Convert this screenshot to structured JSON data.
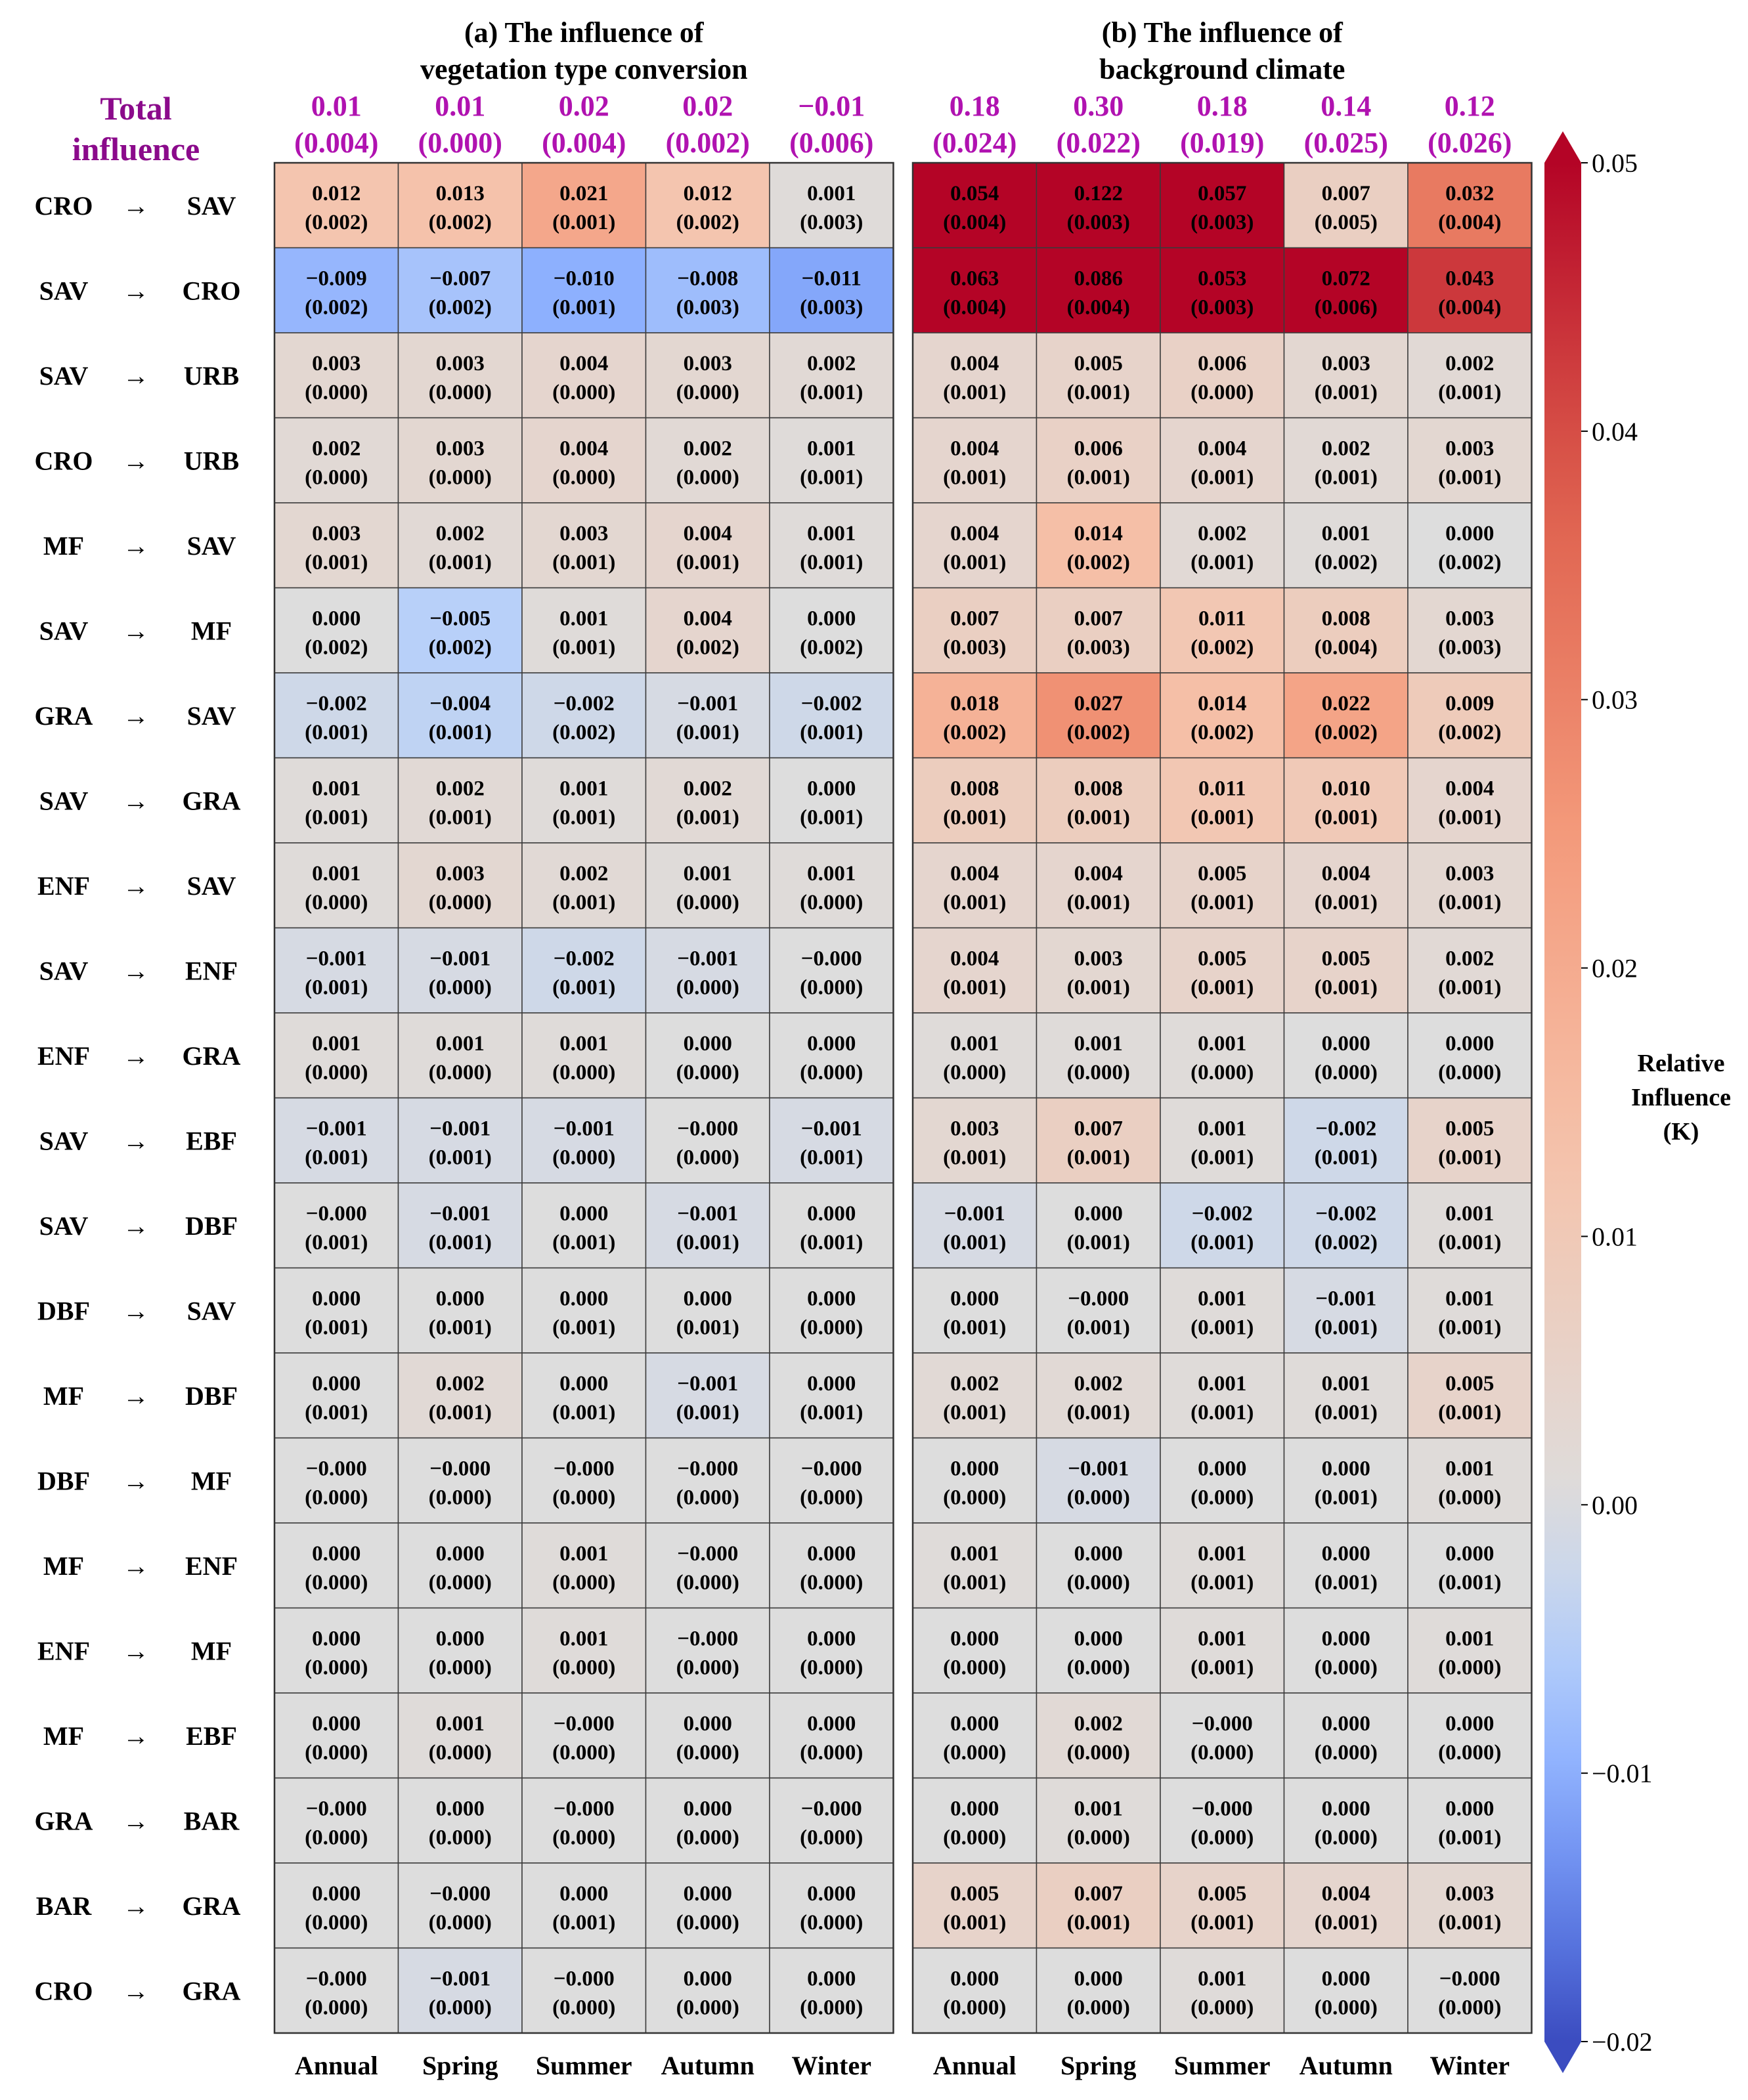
{
  "chart_data": {
    "type": "heatmap",
    "panels": [
      {
        "title_lines": [
          "(a) The influence of",
          "vegetation type conversion"
        ],
        "totals": [
          "0.01",
          "0.01",
          "0.02",
          "0.02",
          "−0.01"
        ],
        "totals_se": [
          "(0.004)",
          "(0.000)",
          "(0.004)",
          "(0.002)",
          "(0.006)"
        ],
        "values": [
          [
            "0.012",
            "0.013",
            "0.021",
            "0.012",
            "0.001"
          ],
          [
            "−0.009",
            "−0.007",
            "−0.010",
            "−0.008",
            "−0.011"
          ],
          [
            "0.003",
            "0.003",
            "0.004",
            "0.003",
            "0.002"
          ],
          [
            "0.002",
            "0.003",
            "0.004",
            "0.002",
            "0.001"
          ],
          [
            "0.003",
            "0.002",
            "0.003",
            "0.004",
            "0.001"
          ],
          [
            "0.000",
            "−0.005",
            "0.001",
            "0.004",
            "0.000"
          ],
          [
            "−0.002",
            "−0.004",
            "−0.002",
            "−0.001",
            "−0.002"
          ],
          [
            "0.001",
            "0.002",
            "0.001",
            "0.002",
            "0.000"
          ],
          [
            "0.001",
            "0.003",
            "0.002",
            "0.001",
            "0.001"
          ],
          [
            "−0.001",
            "−0.001",
            "−0.002",
            "−0.001",
            "−0.000"
          ],
          [
            "0.001",
            "0.001",
            "0.001",
            "0.000",
            "0.000"
          ],
          [
            "−0.001",
            "−0.001",
            "−0.001",
            "−0.000",
            "−0.001"
          ],
          [
            "−0.000",
            "−0.001",
            "0.000",
            "−0.001",
            "0.000"
          ],
          [
            "0.000",
            "0.000",
            "0.000",
            "0.000",
            "0.000"
          ],
          [
            "0.000",
            "0.002",
            "0.000",
            "−0.001",
            "0.000"
          ],
          [
            "−0.000",
            "−0.000",
            "−0.000",
            "−0.000",
            "−0.000"
          ],
          [
            "0.000",
            "0.000",
            "0.001",
            "−0.000",
            "0.000"
          ],
          [
            "0.000",
            "0.000",
            "0.001",
            "−0.000",
            "0.000"
          ],
          [
            "0.000",
            "0.001",
            "−0.000",
            "0.000",
            "0.000"
          ],
          [
            "−0.000",
            "0.000",
            "−0.000",
            "0.000",
            "−0.000"
          ],
          [
            "0.000",
            "−0.000",
            "0.000",
            "0.000",
            "0.000"
          ],
          [
            "−0.000",
            "−0.001",
            "−0.000",
            "0.000",
            "0.000"
          ]
        ],
        "errors": [
          [
            "(0.002)",
            "(0.002)",
            "(0.001)",
            "(0.002)",
            "(0.003)"
          ],
          [
            "(0.002)",
            "(0.002)",
            "(0.001)",
            "(0.003)",
            "(0.003)"
          ],
          [
            "(0.000)",
            "(0.000)",
            "(0.000)",
            "(0.000)",
            "(0.001)"
          ],
          [
            "(0.000)",
            "(0.000)",
            "(0.000)",
            "(0.000)",
            "(0.001)"
          ],
          [
            "(0.001)",
            "(0.001)",
            "(0.001)",
            "(0.001)",
            "(0.001)"
          ],
          [
            "(0.002)",
            "(0.002)",
            "(0.001)",
            "(0.002)",
            "(0.002)"
          ],
          [
            "(0.001)",
            "(0.001)",
            "(0.002)",
            "(0.001)",
            "(0.001)"
          ],
          [
            "(0.001)",
            "(0.001)",
            "(0.001)",
            "(0.001)",
            "(0.001)"
          ],
          [
            "(0.000)",
            "(0.000)",
            "(0.001)",
            "(0.000)",
            "(0.000)"
          ],
          [
            "(0.001)",
            "(0.000)",
            "(0.001)",
            "(0.000)",
            "(0.000)"
          ],
          [
            "(0.000)",
            "(0.000)",
            "(0.000)",
            "(0.000)",
            "(0.000)"
          ],
          [
            "(0.001)",
            "(0.001)",
            "(0.000)",
            "(0.000)",
            "(0.001)"
          ],
          [
            "(0.001)",
            "(0.001)",
            "(0.001)",
            "(0.001)",
            "(0.001)"
          ],
          [
            "(0.001)",
            "(0.001)",
            "(0.001)",
            "(0.001)",
            "(0.000)"
          ],
          [
            "(0.001)",
            "(0.001)",
            "(0.001)",
            "(0.001)",
            "(0.001)"
          ],
          [
            "(0.000)",
            "(0.000)",
            "(0.000)",
            "(0.000)",
            "(0.000)"
          ],
          [
            "(0.000)",
            "(0.000)",
            "(0.000)",
            "(0.000)",
            "(0.000)"
          ],
          [
            "(0.000)",
            "(0.000)",
            "(0.000)",
            "(0.000)",
            "(0.000)"
          ],
          [
            "(0.000)",
            "(0.000)",
            "(0.000)",
            "(0.000)",
            "(0.000)"
          ],
          [
            "(0.000)",
            "(0.000)",
            "(0.000)",
            "(0.000)",
            "(0.000)"
          ],
          [
            "(0.000)",
            "(0.000)",
            "(0.001)",
            "(0.000)",
            "(0.000)"
          ],
          [
            "(0.000)",
            "(0.000)",
            "(0.000)",
            "(0.000)",
            "(0.000)"
          ]
        ]
      },
      {
        "title_lines": [
          "(b) The influence of",
          "background climate"
        ],
        "totals": [
          "0.18",
          "0.30",
          "0.18",
          "0.14",
          "0.12"
        ],
        "totals_se": [
          "(0.024)",
          "(0.022)",
          "(0.019)",
          "(0.025)",
          "(0.026)"
        ],
        "values": [
          [
            "0.054",
            "0.122",
            "0.057",
            "0.007",
            "0.032"
          ],
          [
            "0.063",
            "0.086",
            "0.053",
            "0.072",
            "0.043"
          ],
          [
            "0.004",
            "0.005",
            "0.006",
            "0.003",
            "0.002"
          ],
          [
            "0.004",
            "0.006",
            "0.004",
            "0.002",
            "0.003"
          ],
          [
            "0.004",
            "0.014",
            "0.002",
            "0.001",
            "0.000"
          ],
          [
            "0.007",
            "0.007",
            "0.011",
            "0.008",
            "0.003"
          ],
          [
            "0.018",
            "0.027",
            "0.014",
            "0.022",
            "0.009"
          ],
          [
            "0.008",
            "0.008",
            "0.011",
            "0.010",
            "0.004"
          ],
          [
            "0.004",
            "0.004",
            "0.005",
            "0.004",
            "0.003"
          ],
          [
            "0.004",
            "0.003",
            "0.005",
            "0.005",
            "0.002"
          ],
          [
            "0.001",
            "0.001",
            "0.001",
            "0.000",
            "0.000"
          ],
          [
            "0.003",
            "0.007",
            "0.001",
            "−0.002",
            "0.005"
          ],
          [
            "−0.001",
            "0.000",
            "−0.002",
            "−0.002",
            "0.001"
          ],
          [
            "0.000",
            "−0.000",
            "0.001",
            "−0.001",
            "0.001"
          ],
          [
            "0.002",
            "0.002",
            "0.001",
            "0.001",
            "0.005"
          ],
          [
            "0.000",
            "−0.001",
            "0.000",
            "0.000",
            "0.001"
          ],
          [
            "0.001",
            "0.000",
            "0.001",
            "0.000",
            "0.000"
          ],
          [
            "0.000",
            "0.000",
            "0.001",
            "0.000",
            "0.001"
          ],
          [
            "0.000",
            "0.002",
            "−0.000",
            "0.000",
            "0.000"
          ],
          [
            "0.000",
            "0.001",
            "−0.000",
            "0.000",
            "0.000"
          ],
          [
            "0.005",
            "0.007",
            "0.005",
            "0.004",
            "0.003"
          ],
          [
            "0.000",
            "0.000",
            "0.001",
            "0.000",
            "−0.000"
          ]
        ],
        "errors": [
          [
            "(0.004)",
            "(0.003)",
            "(0.003)",
            "(0.005)",
            "(0.004)"
          ],
          [
            "(0.004)",
            "(0.004)",
            "(0.003)",
            "(0.006)",
            "(0.004)"
          ],
          [
            "(0.001)",
            "(0.001)",
            "(0.000)",
            "(0.001)",
            "(0.001)"
          ],
          [
            "(0.001)",
            "(0.001)",
            "(0.001)",
            "(0.001)",
            "(0.001)"
          ],
          [
            "(0.001)",
            "(0.002)",
            "(0.001)",
            "(0.002)",
            "(0.002)"
          ],
          [
            "(0.003)",
            "(0.003)",
            "(0.002)",
            "(0.004)",
            "(0.003)"
          ],
          [
            "(0.002)",
            "(0.002)",
            "(0.002)",
            "(0.002)",
            "(0.002)"
          ],
          [
            "(0.001)",
            "(0.001)",
            "(0.001)",
            "(0.001)",
            "(0.001)"
          ],
          [
            "(0.001)",
            "(0.001)",
            "(0.001)",
            "(0.001)",
            "(0.001)"
          ],
          [
            "(0.001)",
            "(0.001)",
            "(0.001)",
            "(0.001)",
            "(0.001)"
          ],
          [
            "(0.000)",
            "(0.000)",
            "(0.000)",
            "(0.000)",
            "(0.000)"
          ],
          [
            "(0.001)",
            "(0.001)",
            "(0.001)",
            "(0.001)",
            "(0.001)"
          ],
          [
            "(0.001)",
            "(0.001)",
            "(0.001)",
            "(0.002)",
            "(0.001)"
          ],
          [
            "(0.001)",
            "(0.001)",
            "(0.001)",
            "(0.001)",
            "(0.001)"
          ],
          [
            "(0.001)",
            "(0.001)",
            "(0.001)",
            "(0.001)",
            "(0.001)"
          ],
          [
            "(0.000)",
            "(0.000)",
            "(0.000)",
            "(0.001)",
            "(0.000)"
          ],
          [
            "(0.001)",
            "(0.000)",
            "(0.001)",
            "(0.001)",
            "(0.001)"
          ],
          [
            "(0.000)",
            "(0.000)",
            "(0.001)",
            "(0.000)",
            "(0.000)"
          ],
          [
            "(0.000)",
            "(0.000)",
            "(0.000)",
            "(0.000)",
            "(0.000)"
          ],
          [
            "(0.000)",
            "(0.000)",
            "(0.000)",
            "(0.000)",
            "(0.001)"
          ],
          [
            "(0.001)",
            "(0.001)",
            "(0.001)",
            "(0.001)",
            "(0.001)"
          ],
          [
            "(0.000)",
            "(0.000)",
            "(0.000)",
            "(0.000)",
            "(0.000)"
          ]
        ]
      }
    ],
    "total_label_lines": [
      "Total",
      "influence"
    ],
    "rows": [
      {
        "from": "CRO",
        "to": "SAV"
      },
      {
        "from": "SAV",
        "to": "CRO"
      },
      {
        "from": "SAV",
        "to": "URB"
      },
      {
        "from": "CRO",
        "to": "URB"
      },
      {
        "from": "MF",
        "to": "SAV"
      },
      {
        "from": "SAV",
        "to": "MF"
      },
      {
        "from": "GRA",
        "to": "SAV"
      },
      {
        "from": "SAV",
        "to": "GRA"
      },
      {
        "from": "ENF",
        "to": "SAV"
      },
      {
        "from": "SAV",
        "to": "ENF"
      },
      {
        "from": "ENF",
        "to": "GRA"
      },
      {
        "from": "SAV",
        "to": "EBF"
      },
      {
        "from": "SAV",
        "to": "DBF"
      },
      {
        "from": "DBF",
        "to": "SAV"
      },
      {
        "from": "MF",
        "to": "DBF"
      },
      {
        "from": "DBF",
        "to": "MF"
      },
      {
        "from": "MF",
        "to": "ENF"
      },
      {
        "from": "ENF",
        "to": "MF"
      },
      {
        "from": "MF",
        "to": "EBF"
      },
      {
        "from": "GRA",
        "to": "BAR"
      },
      {
        "from": "BAR",
        "to": "GRA"
      },
      {
        "from": "CRO",
        "to": "GRA"
      }
    ],
    "arrow_symbol": "→",
    "columns": [
      "Annual",
      "Spring",
      "Summer",
      "Autumn",
      "Winter"
    ],
    "colorbar": {
      "label_lines": [
        "Relative",
        "Influence",
        "(K)"
      ],
      "range": [
        -0.02,
        0.05
      ],
      "ticks": [
        "0.05",
        "0.04",
        "0.03",
        "0.02",
        "0.01",
        "0.00",
        "−0.01",
        "−0.02"
      ],
      "tick_values": [
        0.05,
        0.04,
        0.03,
        0.02,
        0.01,
        0.0,
        -0.01,
        -0.02
      ],
      "colormap": "coolwarm"
    }
  }
}
